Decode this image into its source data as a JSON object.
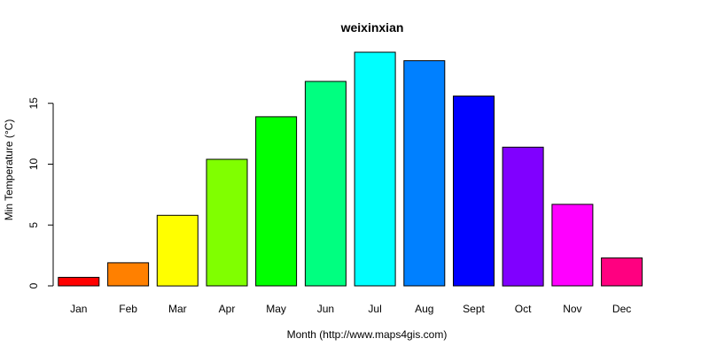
{
  "chart_data": {
    "type": "bar",
    "title": "weixinxian",
    "xlabel": "Month (http://www.maps4gis.com)",
    "ylabel": "Min Temperature (°C)",
    "categories": [
      "Jan",
      "Feb",
      "Mar",
      "Apr",
      "May",
      "Jun",
      "Jul",
      "Aug",
      "Sept",
      "Oct",
      "Nov",
      "Dec"
    ],
    "values": [
      0.7,
      1.9,
      5.8,
      10.4,
      13.9,
      16.8,
      19.2,
      18.5,
      15.6,
      11.4,
      6.7,
      2.3
    ],
    "colors": [
      "#FF0000",
      "#FF8000",
      "#FFFF00",
      "#80FF00",
      "#00FF00",
      "#00FF80",
      "#00FFFF",
      "#0080FF",
      "#0000FF",
      "#8000FF",
      "#FF00FF",
      "#FF0080"
    ],
    "yticks": [
      0,
      5,
      10,
      15
    ],
    "ylim": [
      0,
      19.2
    ],
    "grid": false,
    "legend": "none"
  }
}
